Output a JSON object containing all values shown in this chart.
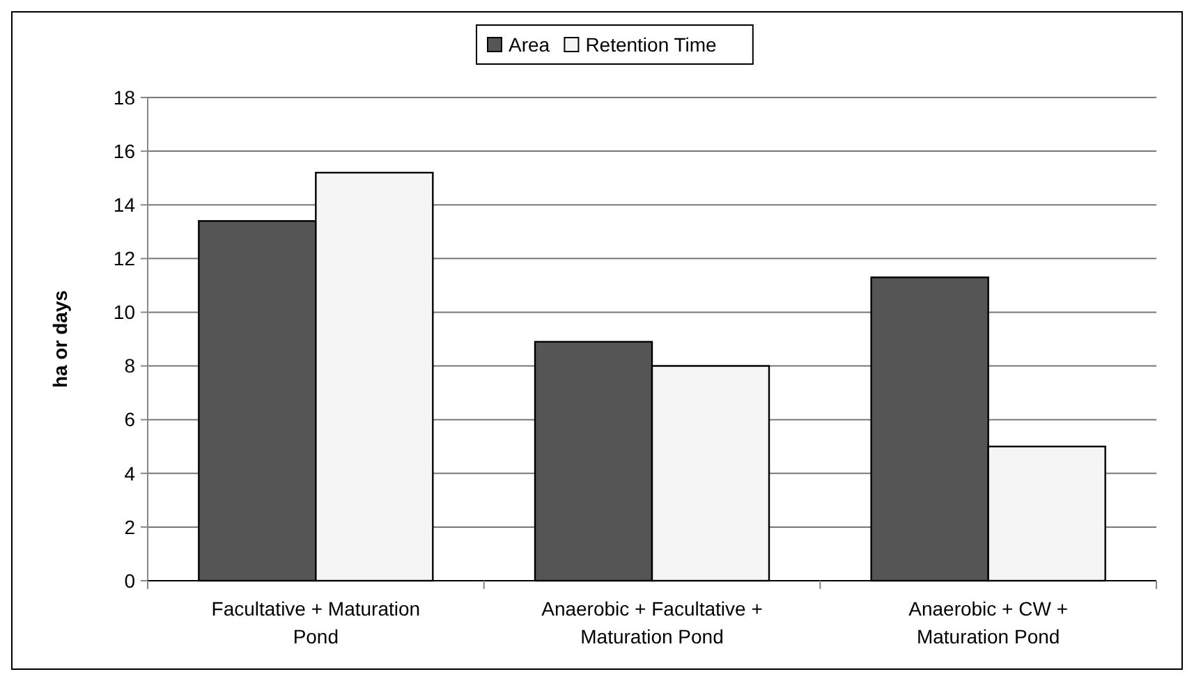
{
  "chart_data": {
    "type": "bar",
    "ylabel": "ha or days",
    "categories": [
      "Facultative + Maturation Pond",
      "Anaerobic + Facultative + Maturation Pond",
      "Anaerobic + CW + Maturation Pond"
    ],
    "series": [
      {
        "name": "Area",
        "color": "#555555",
        "values": [
          13.4,
          8.9,
          11.3
        ]
      },
      {
        "name": "Retention Time",
        "color": "#f5f5f5",
        "values": [
          15.2,
          8,
          5
        ]
      }
    ],
    "ylim": [
      0,
      18
    ],
    "yticks": [
      0,
      2,
      4,
      6,
      8,
      10,
      12,
      14,
      16,
      18
    ],
    "grid": "y",
    "legend": "top"
  }
}
